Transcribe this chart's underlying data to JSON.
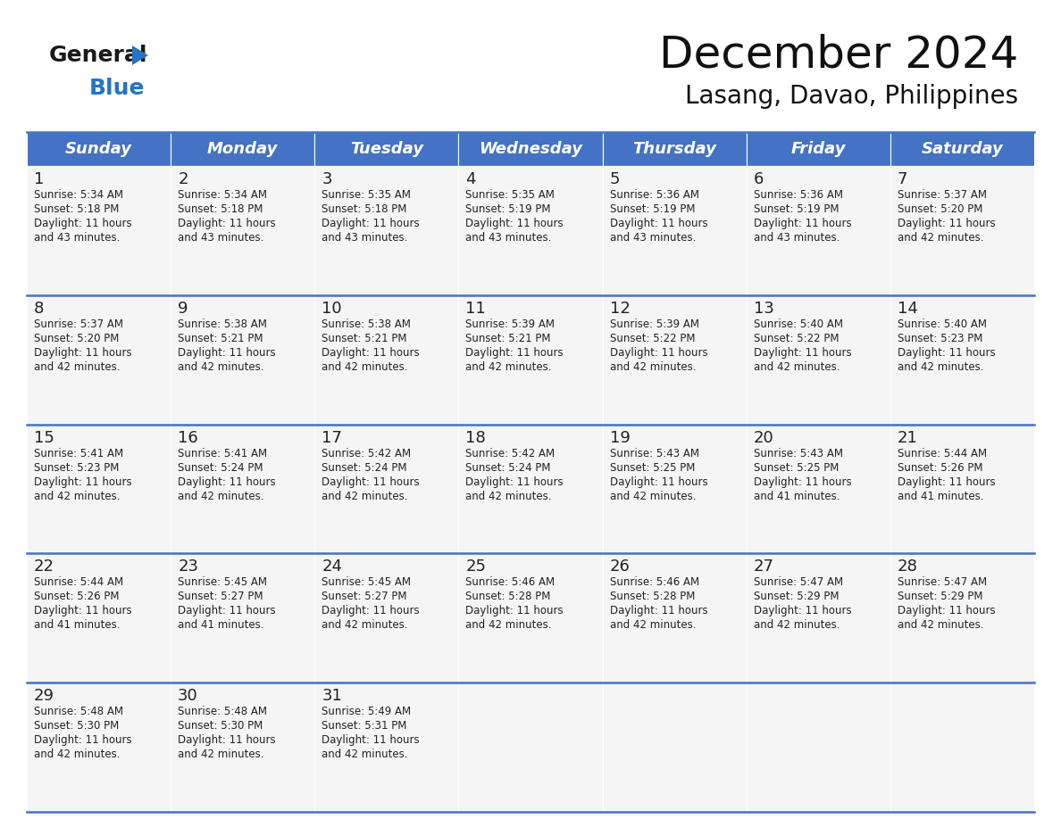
{
  "title": "December 2024",
  "subtitle": "Lasang, Davao, Philippines",
  "header_color": "#4472C4",
  "header_text_color": "#FFFFFF",
  "day_headers": [
    "Sunday",
    "Monday",
    "Tuesday",
    "Wednesday",
    "Thursday",
    "Friday",
    "Saturday"
  ],
  "weeks": [
    [
      {
        "day": 1,
        "sunrise": "5:34 AM",
        "sunset": "5:18 PM",
        "daylight": "11 hours and 43 minutes."
      },
      {
        "day": 2,
        "sunrise": "5:34 AM",
        "sunset": "5:18 PM",
        "daylight": "11 hours and 43 minutes."
      },
      {
        "day": 3,
        "sunrise": "5:35 AM",
        "sunset": "5:18 PM",
        "daylight": "11 hours and 43 minutes."
      },
      {
        "day": 4,
        "sunrise": "5:35 AM",
        "sunset": "5:19 PM",
        "daylight": "11 hours and 43 minutes."
      },
      {
        "day": 5,
        "sunrise": "5:36 AM",
        "sunset": "5:19 PM",
        "daylight": "11 hours and 43 minutes."
      },
      {
        "day": 6,
        "sunrise": "5:36 AM",
        "sunset": "5:19 PM",
        "daylight": "11 hours and 43 minutes."
      },
      {
        "day": 7,
        "sunrise": "5:37 AM",
        "sunset": "5:20 PM",
        "daylight": "11 hours and 42 minutes."
      }
    ],
    [
      {
        "day": 8,
        "sunrise": "5:37 AM",
        "sunset": "5:20 PM",
        "daylight": "11 hours and 42 minutes."
      },
      {
        "day": 9,
        "sunrise": "5:38 AM",
        "sunset": "5:21 PM",
        "daylight": "11 hours and 42 minutes."
      },
      {
        "day": 10,
        "sunrise": "5:38 AM",
        "sunset": "5:21 PM",
        "daylight": "11 hours and 42 minutes."
      },
      {
        "day": 11,
        "sunrise": "5:39 AM",
        "sunset": "5:21 PM",
        "daylight": "11 hours and 42 minutes."
      },
      {
        "day": 12,
        "sunrise": "5:39 AM",
        "sunset": "5:22 PM",
        "daylight": "11 hours and 42 minutes."
      },
      {
        "day": 13,
        "sunrise": "5:40 AM",
        "sunset": "5:22 PM",
        "daylight": "11 hours and 42 minutes."
      },
      {
        "day": 14,
        "sunrise": "5:40 AM",
        "sunset": "5:23 PM",
        "daylight": "11 hours and 42 minutes."
      }
    ],
    [
      {
        "day": 15,
        "sunrise": "5:41 AM",
        "sunset": "5:23 PM",
        "daylight": "11 hours and 42 minutes."
      },
      {
        "day": 16,
        "sunrise": "5:41 AM",
        "sunset": "5:24 PM",
        "daylight": "11 hours and 42 minutes."
      },
      {
        "day": 17,
        "sunrise": "5:42 AM",
        "sunset": "5:24 PM",
        "daylight": "11 hours and 42 minutes."
      },
      {
        "day": 18,
        "sunrise": "5:42 AM",
        "sunset": "5:24 PM",
        "daylight": "11 hours and 42 minutes."
      },
      {
        "day": 19,
        "sunrise": "5:43 AM",
        "sunset": "5:25 PM",
        "daylight": "11 hours and 42 minutes."
      },
      {
        "day": 20,
        "sunrise": "5:43 AM",
        "sunset": "5:25 PM",
        "daylight": "11 hours and 41 minutes."
      },
      {
        "day": 21,
        "sunrise": "5:44 AM",
        "sunset": "5:26 PM",
        "daylight": "11 hours and 41 minutes."
      }
    ],
    [
      {
        "day": 22,
        "sunrise": "5:44 AM",
        "sunset": "5:26 PM",
        "daylight": "11 hours and 41 minutes."
      },
      {
        "day": 23,
        "sunrise": "5:45 AM",
        "sunset": "5:27 PM",
        "daylight": "11 hours and 41 minutes."
      },
      {
        "day": 24,
        "sunrise": "5:45 AM",
        "sunset": "5:27 PM",
        "daylight": "11 hours and 42 minutes."
      },
      {
        "day": 25,
        "sunrise": "5:46 AM",
        "sunset": "5:28 PM",
        "daylight": "11 hours and 42 minutes."
      },
      {
        "day": 26,
        "sunrise": "5:46 AM",
        "sunset": "5:28 PM",
        "daylight": "11 hours and 42 minutes."
      },
      {
        "day": 27,
        "sunrise": "5:47 AM",
        "sunset": "5:29 PM",
        "daylight": "11 hours and 42 minutes."
      },
      {
        "day": 28,
        "sunrise": "5:47 AM",
        "sunset": "5:29 PM",
        "daylight": "11 hours and 42 minutes."
      }
    ],
    [
      {
        "day": 29,
        "sunrise": "5:48 AM",
        "sunset": "5:30 PM",
        "daylight": "11 hours and 42 minutes."
      },
      {
        "day": 30,
        "sunrise": "5:48 AM",
        "sunset": "5:30 PM",
        "daylight": "11 hours and 42 minutes."
      },
      {
        "day": 31,
        "sunrise": "5:49 AM",
        "sunset": "5:31 PM",
        "daylight": "11 hours and 42 minutes."
      },
      null,
      null,
      null,
      null
    ]
  ],
  "logo_color_general": "#1a1a1a",
  "logo_color_blue": "#2575C4",
  "logo_triangle_color": "#2575C4",
  "border_color": "#4472C4",
  "cell_bg": "#F5F5F5",
  "text_color": "#222222",
  "separator_color": "#4472C4",
  "title_fontsize": 36,
  "subtitle_fontsize": 20,
  "header_fontsize": 13,
  "day_num_fontsize": 13,
  "cell_text_fontsize": 8.5
}
